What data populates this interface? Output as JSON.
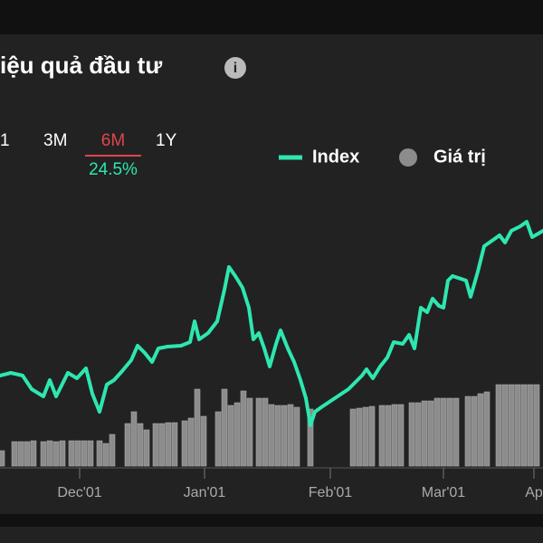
{
  "header": {
    "title": "iệu quả đầu tư",
    "tabs": [
      "1",
      "3M",
      "6M",
      "1Y"
    ],
    "active_tab": 2,
    "return": "24.5%"
  },
  "chart_data": {
    "type": "line",
    "xlim": [
      0,
      600
    ],
    "ylim": [
      0,
      300
    ],
    "xticks": [
      {
        "value": 88,
        "label": "Dec'01"
      },
      {
        "value": 226,
        "label": "Jan'01"
      },
      {
        "value": 365,
        "label": "Feb'01"
      },
      {
        "value": 490,
        "label": "Mar'01"
      },
      {
        "value": 590,
        "label": "Ap"
      }
    ],
    "series": [
      {
        "name": "Index",
        "color": "#2ee6b0",
        "x": [
          0,
          12,
          25,
          35,
          48,
          55,
          62,
          75,
          85,
          95,
          102,
          110,
          118,
          126,
          135,
          145,
          152,
          160,
          168,
          175,
          185,
          200,
          210,
          215,
          220,
          230,
          240,
          248,
          253,
          260,
          268,
          275,
          280,
          286,
          292,
          298,
          305,
          310,
          318,
          325,
          332,
          338,
          343,
          348,
          355,
          370,
          385,
          395,
          400,
          405,
          412,
          420,
          428,
          435,
          445,
          452,
          458,
          465,
          472,
          478,
          485,
          490,
          495,
          500,
          515,
          520,
          528,
          535,
          545,
          552,
          558,
          565,
          575,
          582,
          588,
          595,
          600
        ],
        "values": [
          100,
          103,
          100,
          85,
          77,
          95,
          77,
          103,
          97,
          108,
          80,
          60,
          90,
          95,
          105,
          117,
          133,
          125,
          115,
          130,
          132,
          133,
          137,
          160,
          140,
          147,
          160,
          195,
          220,
          210,
          197,
          175,
          140,
          147,
          130,
          110,
          135,
          150,
          130,
          115,
          95,
          75,
          45,
          60,
          65,
          75,
          85,
          95,
          100,
          107,
          97,
          110,
          120,
          137,
          135,
          145,
          130,
          175,
          170,
          185,
          177,
          175,
          205,
          210,
          205,
          187,
          215,
          243,
          250,
          255,
          247,
          260,
          265,
          270,
          253,
          257,
          260
        ]
      },
      {
        "name": "Giá trị",
        "type": "bar",
        "color": "#8c8c8c",
        "x": [
          2,
          16,
          23,
          30,
          37,
          48,
          55,
          62,
          69,
          79,
          86,
          93,
          100,
          110,
          117,
          124,
          141,
          148,
          155,
          162,
          172,
          179,
          186,
          193,
          204,
          211,
          218,
          225,
          241,
          248,
          255,
          262,
          269,
          276,
          286,
          293,
          300,
          307,
          314,
          321,
          328,
          343,
          390,
          397,
          404,
          411,
          422,
          429,
          436,
          443,
          455,
          462,
          469,
          476,
          483,
          490,
          497,
          504,
          517,
          524,
          531,
          538,
          551,
          558,
          565,
          572,
          579,
          586,
          593
        ],
        "values": [
          17,
          27,
          27,
          27,
          28,
          27,
          28,
          27,
          28,
          28,
          28,
          28,
          28,
          28,
          25,
          35,
          47,
          60,
          47,
          40,
          47,
          47,
          48,
          48,
          50,
          53,
          85,
          55,
          60,
          85,
          67,
          70,
          83,
          75,
          75,
          75,
          68,
          67,
          67,
          68,
          65,
          63,
          63,
          64,
          65,
          66,
          67,
          67,
          68,
          68,
          70,
          70,
          72,
          72,
          75,
          75,
          75,
          75,
          77,
          77,
          80,
          82,
          90,
          90,
          90,
          90,
          90,
          90,
          90
        ]
      }
    ]
  }
}
